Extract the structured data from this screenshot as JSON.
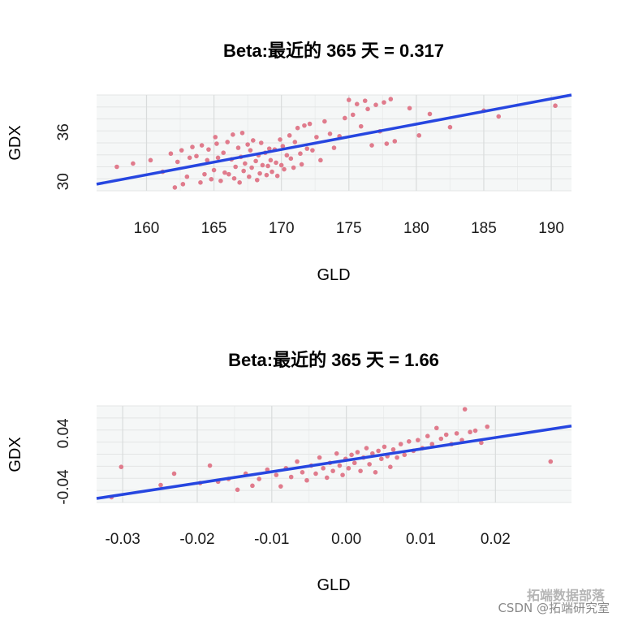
{
  "chart_data": [
    {
      "type": "scatter",
      "title": "Beta:最近的 365 天 = 0.317",
      "xlabel": "GLD",
      "ylabel": "GDX",
      "xlim": [
        156.3,
        191.5
      ],
      "ylim": [
        28.9,
        40.5
      ],
      "xticks": [
        160,
        165,
        170,
        175,
        180,
        185,
        190
      ],
      "xtick_labels": [
        "160",
        "165",
        "170",
        "175",
        "180",
        "185",
        "190"
      ],
      "yticks": [
        30,
        36
      ],
      "ytick_labels": [
        "30",
        "36"
      ],
      "grid": true,
      "point_color": "#e07b8c",
      "line_color": "#2646e0",
      "panel_bg": "#f5f7f7",
      "regression": {
        "x": [
          156.3,
          191.5
        ],
        "y": [
          29.7,
          40.5
        ]
      },
      "points": [
        [
          157.8,
          31.8
        ],
        [
          159.0,
          32.2
        ],
        [
          160.3,
          32.6
        ],
        [
          161.2,
          31.2
        ],
        [
          161.8,
          33.4
        ],
        [
          162.1,
          29.3
        ],
        [
          162.3,
          32.4
        ],
        [
          162.6,
          33.8
        ],
        [
          162.7,
          29.7
        ],
        [
          163.0,
          30.6
        ],
        [
          163.2,
          32.9
        ],
        [
          163.4,
          34.2
        ],
        [
          163.7,
          33.1
        ],
        [
          164.0,
          29.9
        ],
        [
          164.1,
          34.4
        ],
        [
          164.3,
          30.9
        ],
        [
          164.5,
          32.6
        ],
        [
          164.6,
          33.9
        ],
        [
          164.8,
          30.3
        ],
        [
          165.0,
          31.4
        ],
        [
          165.1,
          35.4
        ],
        [
          165.2,
          34.6
        ],
        [
          165.3,
          32.9
        ],
        [
          165.5,
          30.1
        ],
        [
          165.7,
          33.5
        ],
        [
          165.8,
          31.1
        ],
        [
          166.0,
          34.8
        ],
        [
          166.1,
          30.9
        ],
        [
          166.3,
          32.7
        ],
        [
          166.4,
          35.7
        ],
        [
          166.5,
          30.4
        ],
        [
          166.6,
          31.8
        ],
        [
          166.8,
          34.1
        ],
        [
          166.9,
          29.9
        ],
        [
          167.0,
          33.0
        ],
        [
          167.1,
          35.9
        ],
        [
          167.2,
          31.3
        ],
        [
          167.3,
          32.2
        ],
        [
          167.5,
          34.5
        ],
        [
          167.6,
          30.6
        ],
        [
          167.7,
          33.8
        ],
        [
          167.8,
          31.7
        ],
        [
          167.9,
          35.0
        ],
        [
          168.1,
          32.5
        ],
        [
          168.2,
          30.2
        ],
        [
          168.3,
          33.2
        ],
        [
          168.4,
          31.0
        ],
        [
          168.5,
          34.7
        ],
        [
          168.6,
          32.0
        ],
        [
          168.8,
          33.5
        ],
        [
          168.9,
          30.8
        ],
        [
          169.0,
          31.9
        ],
        [
          169.1,
          34.0
        ],
        [
          169.2,
          32.6
        ],
        [
          169.3,
          31.2
        ],
        [
          169.5,
          33.9
        ],
        [
          169.6,
          32.3
        ],
        [
          169.7,
          30.7
        ],
        [
          169.9,
          35.1
        ],
        [
          170.0,
          32.0
        ],
        [
          170.1,
          34.3
        ],
        [
          170.2,
          31.5
        ],
        [
          170.4,
          33.2
        ],
        [
          170.6,
          35.6
        ],
        [
          170.7,
          32.8
        ],
        [
          170.9,
          31.7
        ],
        [
          171.0,
          34.8
        ],
        [
          171.2,
          36.5
        ],
        [
          171.4,
          33.4
        ],
        [
          171.5,
          32.1
        ],
        [
          171.7,
          36.8
        ],
        [
          171.9,
          34.0
        ],
        [
          172.1,
          37.0
        ],
        [
          172.3,
          33.8
        ],
        [
          172.6,
          35.4
        ],
        [
          172.9,
          32.6
        ],
        [
          173.2,
          37.3
        ],
        [
          173.6,
          35.8
        ],
        [
          173.9,
          34.1
        ],
        [
          174.3,
          35.5
        ],
        [
          174.7,
          37.7
        ],
        [
          175.0,
          39.9
        ],
        [
          175.3,
          38.1
        ],
        [
          175.6,
          39.4
        ],
        [
          175.9,
          36.7
        ],
        [
          176.2,
          39.8
        ],
        [
          176.4,
          38.8
        ],
        [
          176.7,
          34.4
        ],
        [
          177.0,
          39.3
        ],
        [
          177.3,
          36.1
        ],
        [
          177.6,
          39.6
        ],
        [
          177.8,
          34.6
        ],
        [
          178.1,
          40.0
        ],
        [
          178.4,
          34.9
        ],
        [
          179.5,
          38.9
        ],
        [
          180.2,
          35.6
        ],
        [
          181.0,
          38.2
        ],
        [
          182.5,
          36.6
        ],
        [
          185.0,
          38.6
        ],
        [
          186.1,
          37.9
        ],
        [
          190.3,
          39.2
        ]
      ]
    },
    {
      "type": "scatter",
      "title": "Beta:最近的 365 天 = 1.66",
      "xlabel": "GLD",
      "ylabel": "GDX",
      "xlim": [
        -0.0335,
        0.0302
      ],
      "ylim": [
        -0.063,
        0.081
      ],
      "xticks": [
        -0.03,
        -0.02,
        -0.01,
        0.0,
        0.01,
        0.02
      ],
      "xtick_labels": [
        "-0.03",
        "-0.02",
        "-0.01",
        "0.00",
        "0.01",
        "0.02"
      ],
      "yticks": [
        -0.04,
        0.04
      ],
      "ytick_labels": [
        "-0.04",
        "0.04"
      ],
      "grid": true,
      "point_color": "#e07b8c",
      "line_color": "#2646e0",
      "panel_bg": "#f5f7f7",
      "regression": {
        "x": [
          -0.0335,
          0.0302
        ],
        "y": [
          -0.057,
          0.051
        ]
      },
      "points": [
        [
          -0.0315,
          -0.055
        ],
        [
          -0.0302,
          -0.01
        ],
        [
          -0.0249,
          -0.037
        ],
        [
          -0.0231,
          -0.02
        ],
        [
          -0.0196,
          -0.034
        ],
        [
          -0.0183,
          -0.008
        ],
        [
          -0.0172,
          -0.032
        ],
        [
          -0.0158,
          -0.028
        ],
        [
          -0.0146,
          -0.044
        ],
        [
          -0.0135,
          -0.02
        ],
        [
          -0.0126,
          -0.038
        ],
        [
          -0.0117,
          -0.028
        ],
        [
          -0.0106,
          -0.014
        ],
        [
          -0.0094,
          -0.022
        ],
        [
          -0.0088,
          -0.039
        ],
        [
          -0.0081,
          -0.012
        ],
        [
          -0.0074,
          -0.025
        ],
        [
          -0.0066,
          -0.002
        ],
        [
          -0.0059,
          -0.018
        ],
        [
          -0.0053,
          -0.03
        ],
        [
          -0.0047,
          -0.008
        ],
        [
          -0.0041,
          -0.02
        ],
        [
          -0.0036,
          0.004
        ],
        [
          -0.0031,
          -0.012
        ],
        [
          -0.0026,
          -0.026
        ],
        [
          -0.0022,
          -0.004
        ],
        [
          -0.0018,
          -0.016
        ],
        [
          -0.0013,
          0.01
        ],
        [
          -0.0009,
          -0.008
        ],
        [
          -0.0005,
          -0.022
        ],
        [
          -0.0001,
          0.002
        ],
        [
          0.0003,
          -0.012
        ],
        [
          0.0007,
          0.008
        ],
        [
          0.0011,
          -0.004
        ],
        [
          0.0015,
          0.012
        ],
        [
          0.0019,
          -0.016
        ],
        [
          0.0023,
          0.004
        ],
        [
          0.0027,
          0.018
        ],
        [
          0.0031,
          -0.006
        ],
        [
          0.0035,
          0.01
        ],
        [
          0.0039,
          -0.018
        ],
        [
          0.0043,
          0.014
        ],
        [
          0.0047,
          0.002
        ],
        [
          0.0051,
          0.02
        ],
        [
          0.0055,
          0.006
        ],
        [
          0.0059,
          -0.01
        ],
        [
          0.0063,
          0.016
        ],
        [
          0.0068,
          0.004
        ],
        [
          0.0073,
          0.024
        ],
        [
          0.0078,
          0.008
        ],
        [
          0.0084,
          0.028
        ],
        [
          0.009,
          0.014
        ],
        [
          0.0096,
          0.03
        ],
        [
          0.0102,
          0.018
        ],
        [
          0.0109,
          0.036
        ],
        [
          0.0115,
          0.024
        ],
        [
          0.0121,
          0.048
        ],
        [
          0.0127,
          0.032
        ],
        [
          0.0134,
          0.038
        ],
        [
          0.0141,
          0.024
        ],
        [
          0.0148,
          0.04
        ],
        [
          0.0155,
          0.03
        ],
        [
          0.0159,
          0.076
        ],
        [
          0.0166,
          0.042
        ],
        [
          0.0173,
          0.044
        ],
        [
          0.0181,
          0.026
        ],
        [
          0.0189,
          0.05
        ],
        [
          0.0274,
          -0.002
        ]
      ]
    }
  ],
  "watermark": {
    "line1": "拓端数据部落",
    "line2": "CSDN @拓端研究室"
  }
}
